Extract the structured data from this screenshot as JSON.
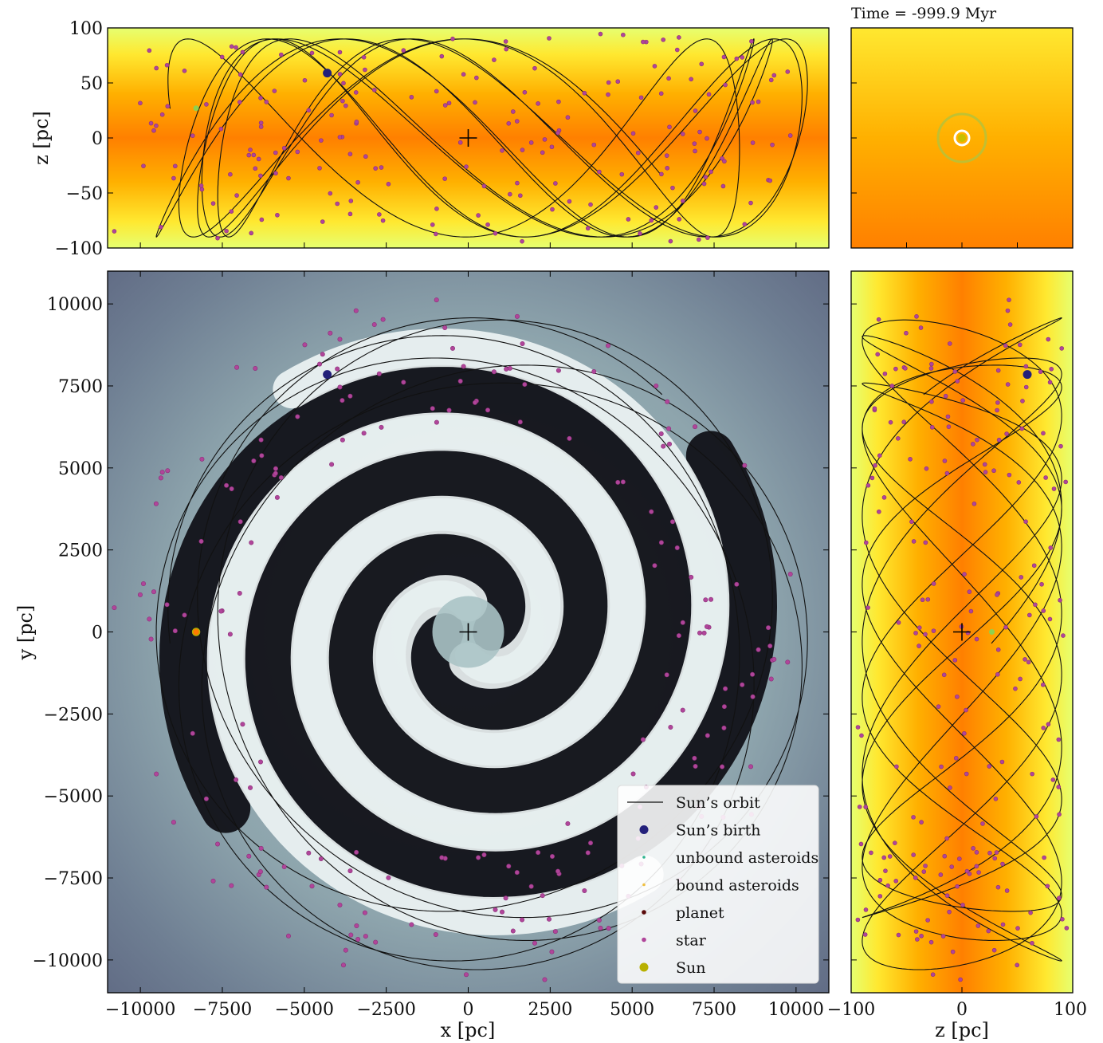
{
  "title": "Time = -999.9 Myr",
  "colors": {
    "orbit": "#111111",
    "birth": "#23207a",
    "unbound": "#2fb38f",
    "bound": "#f0c040",
    "planet": "#5a0a0a",
    "star": "#b0459a",
    "sun": "#b8b000",
    "vertical_high": "#ff8000",
    "vertical_low": "#e6ff70"
  },
  "legend": {
    "placement": "lower-right",
    "entries": [
      {
        "label": "Sun’s orbit",
        "marker": "line",
        "color": "#111111"
      },
      {
        "label": "Sun’s birth",
        "marker": "big-dot",
        "color": "#23207a"
      },
      {
        "label": "unbound asteroids",
        "marker": "tiny-dot",
        "color": "#2fb38f"
      },
      {
        "label": "bound asteroids",
        "marker": "tiny-dot",
        "color": "#f0c040"
      },
      {
        "label": "planet",
        "marker": "small-dot",
        "color": "#5a0a0a"
      },
      {
        "label": "star",
        "marker": "small-dot",
        "color": "#b0459a"
      },
      {
        "label": "Sun",
        "marker": "big-dot",
        "color": "#b8b000"
      }
    ]
  },
  "chart_data": [
    {
      "panel": "xz",
      "type": "scatter",
      "xlabel": "",
      "ylabel": "z [pc]",
      "xlim": [
        -11000,
        11000
      ],
      "ylim": [
        -100,
        100
      ],
      "yticks": [
        -100,
        -50,
        0,
        50,
        100
      ],
      "ytick_labels": [
        "−100",
        "−50",
        "0",
        "50",
        "100"
      ],
      "xticks": [
        -10000,
        -7500,
        -5000,
        -2500,
        0,
        2500,
        5000,
        7500,
        10000
      ],
      "birth": {
        "x": -4300,
        "z": 59
      },
      "sun": {
        "x": -8300,
        "z": 27
      },
      "center": {
        "x": 0,
        "z": 0
      }
    },
    {
      "panel": "face-on",
      "type": "scatter",
      "xlabel": "",
      "ylabel": "",
      "xlim": [
        -100,
        100
      ],
      "ylim": [
        -100,
        100
      ],
      "sun": {
        "x": 0,
        "y": 0
      }
    },
    {
      "panel": "xy",
      "type": "scatter",
      "xlabel": "x [pc]",
      "ylabel": "y [pc]",
      "xlim": [
        -11000,
        11000
      ],
      "ylim": [
        -11000,
        11000
      ],
      "xticks": [
        -10000,
        -7500,
        -5000,
        -2500,
        0,
        2500,
        5000,
        7500,
        10000
      ],
      "xtick_labels": [
        "−10000",
        "−7500",
        "−5000",
        "−2500",
        "0",
        "2500",
        "5000",
        "7500",
        "10000"
      ],
      "yticks": [
        -10000,
        -7500,
        -5000,
        -2500,
        0,
        2500,
        5000,
        7500,
        10000
      ],
      "ytick_labels": [
        "−10000",
        "−7500",
        "−5000",
        "−2500",
        "0",
        "2500",
        "5000",
        "7500",
        "10000"
      ],
      "birth": {
        "x": -4300,
        "y": 7850
      },
      "sun": {
        "x": -8300,
        "y": 0
      },
      "center": {
        "x": 0,
        "y": 0
      }
    },
    {
      "panel": "zy",
      "type": "scatter",
      "xlabel": "z [pc]",
      "ylabel": "",
      "xlim": [
        -100,
        100
      ],
      "ylim": [
        -11000,
        11000
      ],
      "xticks": [
        -100,
        0,
        100
      ],
      "xtick_labels": [
        "−100",
        "0",
        "100"
      ],
      "birth": {
        "z": 59,
        "y": 7850
      },
      "sun": {
        "z": 27,
        "y": 0
      },
      "center": {
        "z": 0,
        "y": 0
      }
    }
  ]
}
